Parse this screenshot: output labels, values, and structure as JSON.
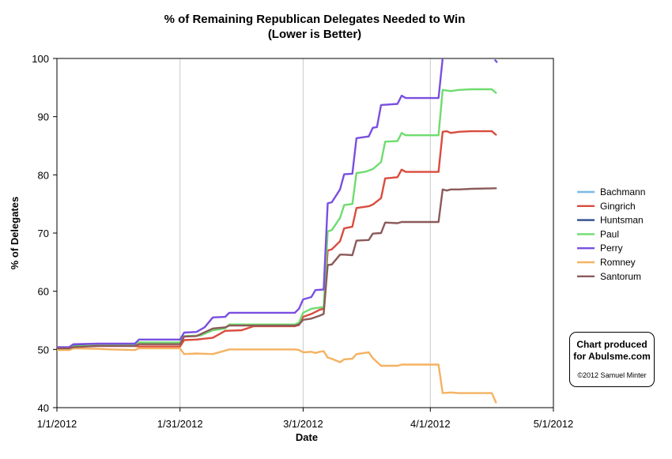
{
  "chart_data": {
    "type": "line",
    "title": "% of Remaining Republican Delegates Needed to Win",
    "subtitle": "(Lower is Better)",
    "xlabel": "Date",
    "ylabel": "% of Delegates",
    "xlim": [
      "2012-01-01",
      "2012-05-01"
    ],
    "ylim": [
      40,
      100
    ],
    "x_ticks": [
      "1/1/2012",
      "1/31/2012",
      "3/1/2012",
      "4/1/2012",
      "5/1/2012"
    ],
    "y_ticks": [
      "40",
      "50",
      "60",
      "70",
      "80",
      "90",
      "100"
    ],
    "grid": "vertical",
    "legend_position": "right",
    "series": [
      {
        "name": "Bachmann",
        "color": "#7ab8e8",
        "points": []
      },
      {
        "name": "Gingrich",
        "color": "#d94c3d",
        "points": [
          [
            "2012-01-01",
            50.3
          ],
          [
            "2012-01-04",
            50.3
          ],
          [
            "2012-01-05",
            50.5
          ],
          [
            "2012-01-11",
            50.6
          ],
          [
            "2012-01-20",
            50.6
          ],
          [
            "2012-01-21",
            50.5
          ],
          [
            "2012-01-31",
            50.5
          ],
          [
            "2012-02-01",
            51.6
          ],
          [
            "2012-02-04",
            51.7
          ],
          [
            "2012-02-08",
            52.0
          ],
          [
            "2012-02-11",
            53.2
          ],
          [
            "2012-02-15",
            53.3
          ],
          [
            "2012-02-18",
            54.0
          ],
          [
            "2012-02-28",
            54.0
          ],
          [
            "2012-02-29",
            54.2
          ],
          [
            "2012-03-01",
            55.6
          ],
          [
            "2012-03-03",
            56.1
          ],
          [
            "2012-03-05",
            56.8
          ],
          [
            "2012-03-06",
            57.0
          ],
          [
            "2012-03-07",
            67.0
          ],
          [
            "2012-03-08",
            67.2
          ],
          [
            "2012-03-10",
            68.6
          ],
          [
            "2012-03-11",
            70.8
          ],
          [
            "2012-03-13",
            71.1
          ],
          [
            "2012-03-14",
            74.3
          ],
          [
            "2012-03-17",
            74.6
          ],
          [
            "2012-03-18",
            74.9
          ],
          [
            "2012-03-20",
            76.0
          ],
          [
            "2012-03-21",
            79.4
          ],
          [
            "2012-03-24",
            79.6
          ],
          [
            "2012-03-25",
            80.9
          ],
          [
            "2012-03-26",
            80.5
          ],
          [
            "2012-04-03",
            80.5
          ],
          [
            "2012-04-04",
            87.4
          ],
          [
            "2012-04-05",
            87.5
          ],
          [
            "2012-04-06",
            87.2
          ],
          [
            "2012-04-08",
            87.4
          ],
          [
            "2012-04-11",
            87.5
          ],
          [
            "2012-04-16",
            87.5
          ],
          [
            "2012-04-17",
            86.9
          ]
        ]
      },
      {
        "name": "Huntsman",
        "color": "#2c4d8c",
        "points": [
          [
            "2012-01-01",
            50.3
          ],
          [
            "2012-01-04",
            50.3
          ],
          [
            "2012-01-05",
            50.8
          ],
          [
            "2012-01-11",
            50.9
          ],
          [
            "2012-01-14",
            50.9
          ]
        ]
      },
      {
        "name": "Paul",
        "color": "#6fdc6f",
        "points": [
          [
            "2012-01-01",
            50.1
          ],
          [
            "2012-01-04",
            50.1
          ],
          [
            "2012-01-05",
            50.5
          ],
          [
            "2012-01-11",
            50.7
          ],
          [
            "2012-01-20",
            50.7
          ],
          [
            "2012-01-21",
            51.2
          ],
          [
            "2012-01-31",
            51.2
          ],
          [
            "2012-02-01",
            52.3
          ],
          [
            "2012-02-05",
            52.4
          ],
          [
            "2012-02-08",
            53.3
          ],
          [
            "2012-02-11",
            53.6
          ],
          [
            "2012-02-12",
            54.3
          ],
          [
            "2012-02-28",
            54.3
          ],
          [
            "2012-02-29",
            54.6
          ],
          [
            "2012-03-01",
            56.3
          ],
          [
            "2012-03-03",
            57.0
          ],
          [
            "2012-03-05",
            57.2
          ],
          [
            "2012-03-06",
            57.3
          ],
          [
            "2012-03-07",
            70.3
          ],
          [
            "2012-03-08",
            70.5
          ],
          [
            "2012-03-10",
            72.6
          ],
          [
            "2012-03-11",
            74.8
          ],
          [
            "2012-03-13",
            75.0
          ],
          [
            "2012-03-14",
            80.3
          ],
          [
            "2012-03-16",
            80.5
          ],
          [
            "2012-03-18",
            81.0
          ],
          [
            "2012-03-20",
            82.2
          ],
          [
            "2012-03-21",
            85.7
          ],
          [
            "2012-03-24",
            85.8
          ],
          [
            "2012-03-25",
            87.2
          ],
          [
            "2012-03-26",
            86.8
          ],
          [
            "2012-04-03",
            86.8
          ],
          [
            "2012-04-04",
            94.6
          ],
          [
            "2012-04-06",
            94.4
          ],
          [
            "2012-04-08",
            94.6
          ],
          [
            "2012-04-11",
            94.7
          ],
          [
            "2012-04-16",
            94.7
          ],
          [
            "2012-04-17",
            94.1
          ]
        ]
      },
      {
        "name": "Perry",
        "color": "#7a4fe0",
        "points": [
          [
            "2012-01-01",
            50.4
          ],
          [
            "2012-01-04",
            50.4
          ],
          [
            "2012-01-05",
            50.9
          ],
          [
            "2012-01-11",
            51.0
          ],
          [
            "2012-01-20",
            51.0
          ],
          [
            "2012-01-21",
            51.7
          ],
          [
            "2012-01-31",
            51.7
          ],
          [
            "2012-02-01",
            52.9
          ],
          [
            "2012-02-04",
            53.0
          ],
          [
            "2012-02-06",
            53.8
          ],
          [
            "2012-02-08",
            55.5
          ],
          [
            "2012-02-11",
            55.6
          ],
          [
            "2012-02-12",
            56.3
          ],
          [
            "2012-02-28",
            56.3
          ],
          [
            "2012-02-29",
            57.0
          ],
          [
            "2012-03-01",
            58.6
          ],
          [
            "2012-03-03",
            59.0
          ],
          [
            "2012-03-04",
            60.2
          ],
          [
            "2012-03-06",
            60.3
          ],
          [
            "2012-03-07",
            75.1
          ],
          [
            "2012-03-08",
            75.3
          ],
          [
            "2012-03-10",
            77.5
          ],
          [
            "2012-03-11",
            80.1
          ],
          [
            "2012-03-13",
            80.2
          ],
          [
            "2012-03-14",
            86.3
          ],
          [
            "2012-03-17",
            86.6
          ],
          [
            "2012-03-18",
            88.1
          ],
          [
            "2012-03-19",
            88.2
          ],
          [
            "2012-03-20",
            92.0
          ],
          [
            "2012-03-24",
            92.2
          ],
          [
            "2012-03-25",
            93.6
          ],
          [
            "2012-03-26",
            93.2
          ],
          [
            "2012-04-03",
            93.2
          ],
          [
            "2012-04-04",
            100.0
          ]
        ]
      },
      {
        "name": "Romney",
        "color": "#f5b262",
        "points": [
          [
            "2012-01-01",
            49.9
          ],
          [
            "2012-01-04",
            49.9
          ],
          [
            "2012-01-05",
            50.2
          ],
          [
            "2012-01-11",
            50.1
          ],
          [
            "2012-01-14",
            50.0
          ],
          [
            "2012-01-20",
            49.9
          ],
          [
            "2012-01-21",
            50.2
          ],
          [
            "2012-01-31",
            50.2
          ],
          [
            "2012-02-01",
            49.2
          ],
          [
            "2012-02-04",
            49.3
          ],
          [
            "2012-02-08",
            49.2
          ],
          [
            "2012-02-11",
            49.8
          ],
          [
            "2012-02-12",
            50.0
          ],
          [
            "2012-02-28",
            50.0
          ],
          [
            "2012-02-29",
            49.9
          ],
          [
            "2012-03-01",
            49.5
          ],
          [
            "2012-03-03",
            49.6
          ],
          [
            "2012-03-04",
            49.4
          ],
          [
            "2012-03-05",
            49.6
          ],
          [
            "2012-03-06",
            49.7
          ],
          [
            "2012-03-07",
            48.6
          ],
          [
            "2012-03-08",
            48.4
          ],
          [
            "2012-03-10",
            47.8
          ],
          [
            "2012-03-11",
            48.3
          ],
          [
            "2012-03-13",
            48.4
          ],
          [
            "2012-03-14",
            49.2
          ],
          [
            "2012-03-17",
            49.5
          ],
          [
            "2012-03-18",
            48.5
          ],
          [
            "2012-03-20",
            47.2
          ],
          [
            "2012-03-24",
            47.2
          ],
          [
            "2012-03-25",
            47.4
          ],
          [
            "2012-04-03",
            47.4
          ],
          [
            "2012-04-04",
            42.5
          ],
          [
            "2012-04-06",
            42.6
          ],
          [
            "2012-04-08",
            42.5
          ],
          [
            "2012-04-16",
            42.5
          ],
          [
            "2012-04-17",
            40.9
          ]
        ]
      },
      {
        "name": "Santorum",
        "color": "#8c5a5a",
        "points": [
          [
            "2012-01-01",
            50.2
          ],
          [
            "2012-01-04",
            50.2
          ],
          [
            "2012-01-05",
            50.4
          ],
          [
            "2012-01-11",
            50.6
          ],
          [
            "2012-01-20",
            50.6
          ],
          [
            "2012-01-21",
            50.9
          ],
          [
            "2012-01-31",
            50.9
          ],
          [
            "2012-02-01",
            52.2
          ],
          [
            "2012-02-04",
            52.3
          ],
          [
            "2012-02-08",
            53.6
          ],
          [
            "2012-02-11",
            53.8
          ],
          [
            "2012-02-12",
            54.1
          ],
          [
            "2012-02-28",
            54.1
          ],
          [
            "2012-02-29",
            54.3
          ],
          [
            "2012-03-01",
            55.1
          ],
          [
            "2012-03-03",
            55.3
          ],
          [
            "2012-03-05",
            55.8
          ],
          [
            "2012-03-06",
            56.1
          ],
          [
            "2012-03-07",
            64.5
          ],
          [
            "2012-03-08",
            64.6
          ],
          [
            "2012-03-10",
            66.3
          ],
          [
            "2012-03-11",
            66.3
          ],
          [
            "2012-03-13",
            66.2
          ],
          [
            "2012-03-14",
            68.7
          ],
          [
            "2012-03-17",
            68.8
          ],
          [
            "2012-03-18",
            69.9
          ],
          [
            "2012-03-20",
            70.0
          ],
          [
            "2012-03-21",
            71.8
          ],
          [
            "2012-03-24",
            71.7
          ],
          [
            "2012-03-25",
            71.9
          ],
          [
            "2012-04-03",
            71.9
          ],
          [
            "2012-04-04",
            77.5
          ],
          [
            "2012-04-05",
            77.3
          ],
          [
            "2012-04-06",
            77.5
          ],
          [
            "2012-04-08",
            77.5
          ],
          [
            "2012-04-11",
            77.6
          ],
          [
            "2012-04-17",
            77.7
          ]
        ]
      }
    ]
  },
  "credit": {
    "line1": "Chart produced",
    "line2": "for Abulsme.com",
    "copyright": "©2012 Samuel Minter"
  }
}
